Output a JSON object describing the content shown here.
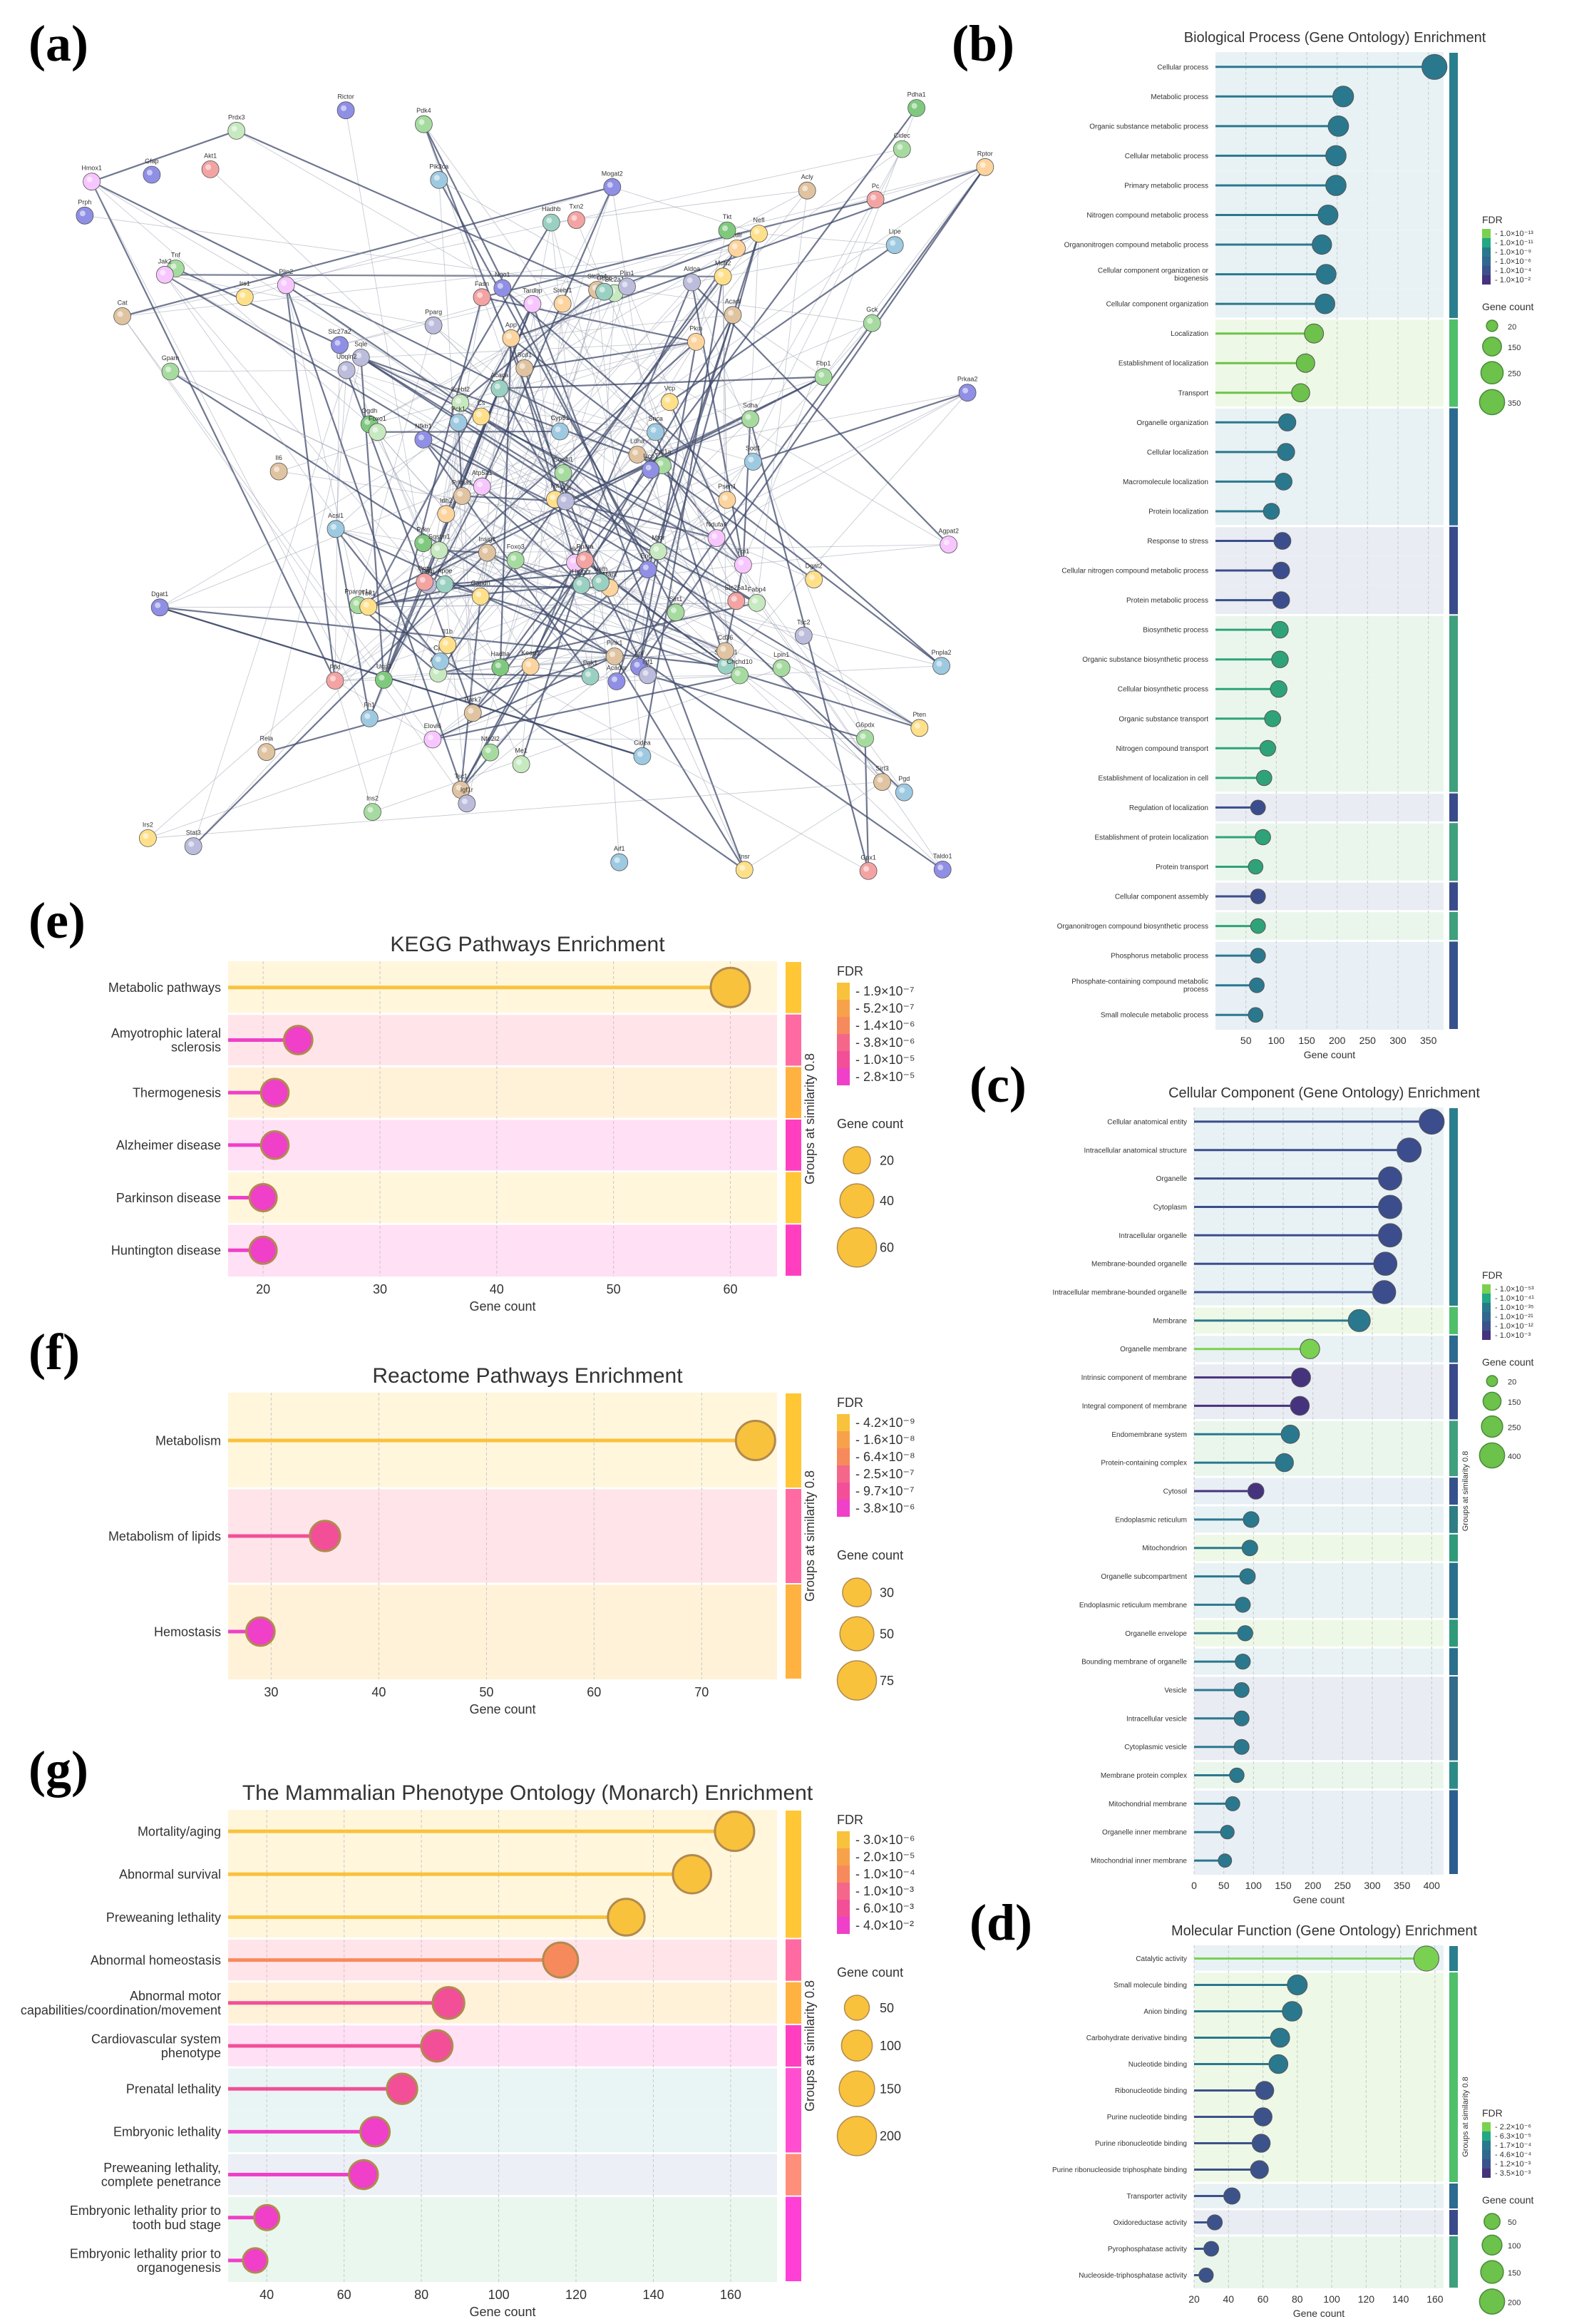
{
  "panel_labels": {
    "a": "(a)",
    "b": "(b)",
    "c": "(c)",
    "d": "(d)",
    "e": "(e)",
    "f": "(f)",
    "g": "(g)"
  },
  "network": {
    "node_labels": [
      "Pfkl",
      "Pfkp",
      "Gapdh",
      "Hk2",
      "Pkm",
      "Eno1",
      "Ldha",
      "Aldoa",
      "Tpi1",
      "Pgk1",
      "Acaca",
      "Fasn",
      "Scd1",
      "Hmgcr",
      "Sqle",
      "Cyp51",
      "Ldlr",
      "Insig1",
      "Srebf1",
      "Srebf2",
      "Atp5a1",
      "Atp5b",
      "Ndufa4",
      "Cox4i1",
      "Sdha",
      "Idh2",
      "Cs",
      "Mdh2",
      "Ogdh",
      "Fh1",
      "Slc2a1",
      "Slc2a4",
      "Slc16a1",
      "Slc25a1",
      "Slc27a2",
      "Acsl1",
      "Cpt1a",
      "Cpt2",
      "Hadha",
      "Hadhb",
      "Acadm",
      "Acadl",
      "Ppara",
      "Pparg",
      "Ppargc1a",
      "Ucp1",
      "Ucp3",
      "Lpl",
      "Cd36",
      "Fabp4",
      "Apoe",
      "App",
      "Psen1",
      "Mapt",
      "Snca",
      "Park7",
      "Pink1",
      "Prkn",
      "Htt",
      "Sod1",
      "Tardbp",
      "Fus",
      "Vcp",
      "Ubqln2",
      "Optn",
      "Sqstm1",
      "Tbk1",
      "Chchd10",
      "Nefl",
      "Nefh",
      "Prph",
      "Gfap",
      "Aif1",
      "Tnf",
      "Il6",
      "Il1b",
      "Nfkb1",
      "Rela",
      "Stat3",
      "Jak2",
      "Akt1",
      "Mtor",
      "Rptor",
      "Rictor",
      "Pik3ca",
      "Pten",
      "Tsc1",
      "Tsc2",
      "Foxo1",
      "Foxo3",
      "Sirt1",
      "Sirt3",
      "Prkaa1",
      "Prkaa2",
      "Ins2",
      "Insr",
      "Irs1",
      "Irs2",
      "Igf1",
      "Igf1r",
      "Gck",
      "Pck1",
      "G6pc",
      "Fbp1",
      "Pc",
      "Pdha1",
      "Pdk4",
      "Lipe",
      "Pnpla2",
      "Dgat1",
      "Dgat2",
      "Gpam",
      "Agpat2",
      "Lpin1",
      "Mogat2",
      "Plin1",
      "Plin2",
      "Cidea",
      "Cidec",
      "Elovl6",
      "Acly",
      "Me1",
      "G6pdx",
      "Pgd",
      "Tkt",
      "Taldo1",
      "Cat",
      "Gpx1",
      "Prdx3",
      "Txn2",
      "Nqo1",
      "Hmox1",
      "Nfe2l2",
      "Keap1"
    ]
  },
  "chart_data": [
    {
      "id": "b",
      "type": "lollipop",
      "title": "Biological Process (Gene Ontology) Enrichment",
      "xlabel": "Gene count",
      "xlim": [
        0,
        375
      ],
      "xticks": [
        50,
        100,
        150,
        200,
        250,
        300,
        350
      ],
      "legend_title": "FDR",
      "fdr_legend": [
        "1.0×10⁻¹³",
        "1.0×10⁻¹¹",
        "1.0×10⁻⁹",
        "1.0×10⁻⁶",
        "1.0×10⁻⁴",
        "1.0×10⁻²"
      ],
      "size_legend_title": "Gene count",
      "size_legend": [
        20,
        150,
        250,
        350
      ],
      "group_title": "",
      "categories": [
        "Cellular process",
        "Metabolic process",
        "Organic substance metabolic process",
        "Cellular metabolic process",
        "Primary metabolic process",
        "Nitrogen compound metabolic process",
        "Organonitrogen compound metabolic process",
        "Cellular component organization or biogenesis",
        "Cellular component organization",
        "Localization",
        "Establishment of localization",
        "Transport",
        "Organelle organization",
        "Cellular localization",
        "Macromolecule localization",
        "Protein localization",
        "Response to stress",
        "Cellular nitrogen compound metabolic process",
        "Protein metabolic process",
        "Biosynthetic process",
        "Organic substance biosynthetic process",
        "Cellular biosynthetic process",
        "Organic substance transport",
        "Nitrogen compound transport",
        "Establishment of localization in cell",
        "Regulation of localization",
        "Establishment of protein localization",
        "Protein transport",
        "Cellular component assembly",
        "Organonitrogen compound biosynthetic process",
        "Phosphorus metabolic process",
        "Phosphate-containing compound metabolic process",
        "Small molecule metabolic process"
      ],
      "values": [
        360,
        210,
        202,
        198,
        198,
        185,
        175,
        182,
        180,
        162,
        148,
        140,
        118,
        116,
        112,
        92,
        110,
        108,
        108,
        106,
        106,
        104,
        94,
        86,
        80,
        70,
        78,
        66,
        70,
        70,
        70,
        68,
        66
      ],
      "groups": [
        1,
        1,
        1,
        1,
        1,
        1,
        1,
        1,
        1,
        2,
        2,
        2,
        3,
        3,
        3,
        3,
        4,
        4,
        4,
        5,
        5,
        5,
        5,
        5,
        5,
        4,
        5,
        5,
        4,
        5,
        6,
        6,
        6
      ]
    },
    {
      "id": "c",
      "type": "lollipop",
      "title": "Cellular Component (Gene Ontology) Enrichment",
      "xlabel": "Gene count",
      "xlim": [
        0,
        420
      ],
      "xticks": [
        0,
        50,
        100,
        150,
        200,
        250,
        300,
        350,
        400
      ],
      "legend_title": "FDR",
      "fdr_legend": [
        "1.0×10⁻⁵³",
        "1.0×10⁻⁴¹",
        "1.0×10⁻³⁵",
        "1.0×10⁻²¹",
        "1.0×10⁻¹²",
        "1.0×10⁻³"
      ],
      "size_legend_title": "Gene count",
      "size_legend": [
        20,
        150,
        250,
        400
      ],
      "group_title": "Groups at similarity 0.8",
      "categories": [
        "Cellular anatomical entity",
        "Intracellular anatomical structure",
        "Organelle",
        "Cytoplasm",
        "Intracellular organelle",
        "Membrane-bounded organelle",
        "Intracellular membrane-bounded organelle",
        "Membrane",
        "Organelle membrane",
        "Intrinsic component of membrane",
        "Integral component of membrane",
        "Endomembrane system",
        "Protein-containing complex",
        "Cytosol",
        "Endoplasmic reticulum",
        "Mitochondrion",
        "Organelle subcompartment",
        "Endoplasmic reticulum membrane",
        "Organelle envelope",
        "Bounding membrane of organelle",
        "Vesicle",
        "Intracellular vesicle",
        "Cytoplasmic vesicle",
        "Membrane protein complex",
        "Mitochondrial membrane",
        "Organelle inner membrane",
        "Mitochondrial inner membrane"
      ],
      "values": [
        400,
        362,
        330,
        330,
        330,
        322,
        320,
        278,
        195,
        180,
        178,
        162,
        152,
        104,
        96,
        94,
        90,
        82,
        86,
        82,
        80,
        80,
        80,
        72,
        65,
        56,
        52
      ],
      "groups": [
        1,
        1,
        1,
        1,
        1,
        1,
        1,
        2,
        3,
        4,
        4,
        5,
        5,
        6,
        7,
        8,
        9,
        9,
        8,
        9,
        10,
        10,
        10,
        11,
        12,
        12,
        12
      ]
    },
    {
      "id": "d",
      "type": "lollipop",
      "title": "Molecular Function (Gene Ontology) Enrichment",
      "xlabel": "Gene count",
      "xlim": [
        20,
        165
      ],
      "xticks": [
        20,
        40,
        60,
        80,
        100,
        120,
        140,
        160
      ],
      "legend_title": "FDR",
      "fdr_legend": [
        "2.2×10⁻⁶",
        "6.3×10⁻⁵",
        "1.7×10⁻⁴",
        "4.6×10⁻⁴",
        "1.2×10⁻³",
        "3.5×10⁻³"
      ],
      "size_legend_title": "Gene count",
      "size_legend": [
        50,
        100,
        150,
        200
      ],
      "group_title": "Groups at similarity 0.8",
      "categories": [
        "Catalytic activity",
        "Small molecule binding",
        "Anion binding",
        "Carbohydrate derivative binding",
        "Nucleotide binding",
        "Ribonucleotide binding",
        "Purine nucleotide binding",
        "Purine ribonucleotide binding",
        "Purine ribonucleoside triphosphate binding",
        "Transporter activity",
        "Oxidoreductase activity",
        "Pyrophosphatase activity",
        "Nucleoside-triphosphatase activity"
      ],
      "values": [
        155,
        80,
        77,
        70,
        69,
        61,
        60,
        59,
        58,
        42,
        32,
        30,
        27
      ],
      "groups": [
        1,
        2,
        2,
        2,
        2,
        2,
        2,
        2,
        2,
        3,
        4,
        5,
        5
      ]
    },
    {
      "id": "e",
      "type": "lollipop",
      "title": "KEGG Pathways Enrichment",
      "xlabel": "Gene count",
      "xlim": [
        17,
        64
      ],
      "xticks": [
        20,
        30,
        40,
        50,
        60
      ],
      "legend_title": "FDR",
      "fdr_legend": [
        "1.9×10⁻⁷",
        "5.2×10⁻⁷",
        "1.4×10⁻⁶",
        "3.8×10⁻⁶",
        "1.0×10⁻⁵",
        "2.8×10⁻⁵"
      ],
      "size_legend_title": "Gene count",
      "size_legend": [
        20,
        40,
        60
      ],
      "group_title": "Groups at similarity 0.8",
      "categories": [
        "Metabolic pathways",
        "Amyotrophic lateral sclerosis",
        "Thermogenesis",
        "Alzheimer disease",
        "Parkinson disease",
        "Huntington disease"
      ],
      "values": [
        60,
        23,
        21,
        21,
        20,
        20
      ],
      "groups": [
        1,
        2,
        3,
        4,
        1,
        4
      ]
    },
    {
      "id": "f",
      "type": "lollipop",
      "title": "Reactome Pathways Enrichment",
      "xlabel": "Gene count",
      "xlim": [
        26,
        77
      ],
      "xticks": [
        30,
        40,
        50,
        60,
        70
      ],
      "legend_title": "FDR",
      "fdr_legend": [
        "4.2×10⁻⁹",
        "1.6×10⁻⁸",
        "6.4×10⁻⁸",
        "2.5×10⁻⁷",
        "9.7×10⁻⁷",
        "3.8×10⁻⁶"
      ],
      "size_legend_title": "Gene count",
      "size_legend": [
        30,
        50,
        75
      ],
      "group_title": "Groups at similarity 0.8",
      "categories": [
        "Metabolism",
        "Metabolism of lipids",
        "Hemostasis"
      ],
      "values": [
        75,
        35,
        29
      ],
      "groups": [
        1,
        2,
        3
      ]
    },
    {
      "id": "g",
      "type": "lollipop",
      "title": "The Mammalian Phenotype Ontology (Monarch) Enrichment",
      "xlabel": "Gene count",
      "xlim": [
        30,
        172
      ],
      "xticks": [
        40,
        60,
        80,
        100,
        120,
        140,
        160
      ],
      "legend_title": "FDR",
      "fdr_legend": [
        "3.0×10⁻⁶",
        "2.0×10⁻⁵",
        "1.0×10⁻⁴",
        "1.0×10⁻³",
        "6.0×10⁻³",
        "4.0×10⁻²"
      ],
      "size_legend_title": "Gene count",
      "size_legend": [
        50,
        100,
        150,
        200
      ],
      "group_title": "Groups at similarity 0.8",
      "categories": [
        "Mortality/aging",
        "Abnormal survival",
        "Preweaning lethality",
        "Abnormal homeostasis",
        "Abnormal motor capabilities/coordination/movement",
        "Cardiovascular system phenotype",
        "Prenatal lethality",
        "Embryonic lethality",
        "Preweaning lethality, complete penetrance",
        "Embryonic lethality prior to tooth bud stage",
        "Embryonic lethality prior to organogenesis"
      ],
      "values": [
        161,
        150,
        133,
        116,
        87,
        84,
        75,
        68,
        65,
        40,
        37
      ],
      "groups": [
        1,
        1,
        1,
        2,
        3,
        4,
        5,
        5,
        6,
        7,
        7
      ]
    }
  ]
}
